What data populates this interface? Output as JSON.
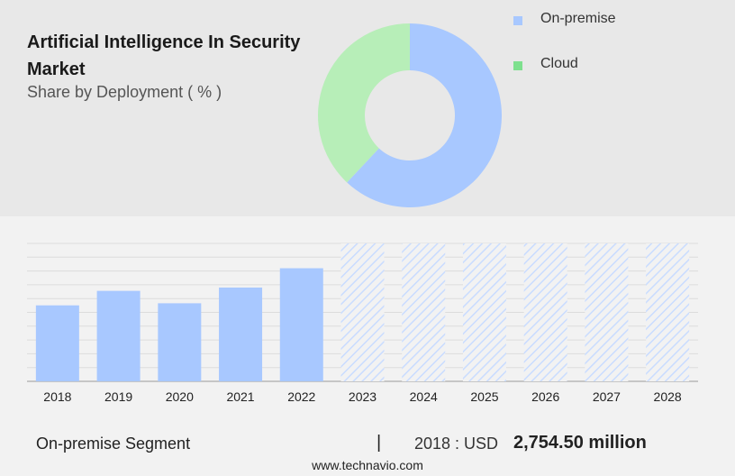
{
  "header": {
    "title": "Artificial Intelligence In Security Market",
    "subtitle": "Share by Deployment ( % )"
  },
  "donut_chart": {
    "type": "pie",
    "slices": [
      {
        "label": "On-premise",
        "value": 62,
        "color": "#a8c8ff"
      },
      {
        "label": "Cloud",
        "value": 38,
        "color": "#b7eeb8"
      }
    ],
    "legend": [
      {
        "label": "On-premise",
        "color": "#a8c8ff"
      },
      {
        "label": "Cloud",
        "color": "#7ee08e"
      }
    ]
  },
  "chart_data": {
    "type": "bar",
    "categories": [
      "2018",
      "2019",
      "2020",
      "2021",
      "2022",
      "2023",
      "2024",
      "2025",
      "2026",
      "2027",
      "2028"
    ],
    "values": [
      2754.5,
      3280,
      2830,
      3400,
      4100,
      null,
      null,
      null,
      null,
      null,
      null
    ],
    "forecast_categories": [
      "2023",
      "2024",
      "2025",
      "2026",
      "2027",
      "2028"
    ],
    "ylim": [
      0,
      5000
    ],
    "grid": true,
    "bar_color": "#a8c8ff",
    "forecast_color": "#c9dcff"
  },
  "footer": {
    "segment": "On-premise Segment",
    "separator": "|",
    "year_label": "2018 : USD",
    "value": "2,754.50 million",
    "url": "www.technavio.com"
  }
}
